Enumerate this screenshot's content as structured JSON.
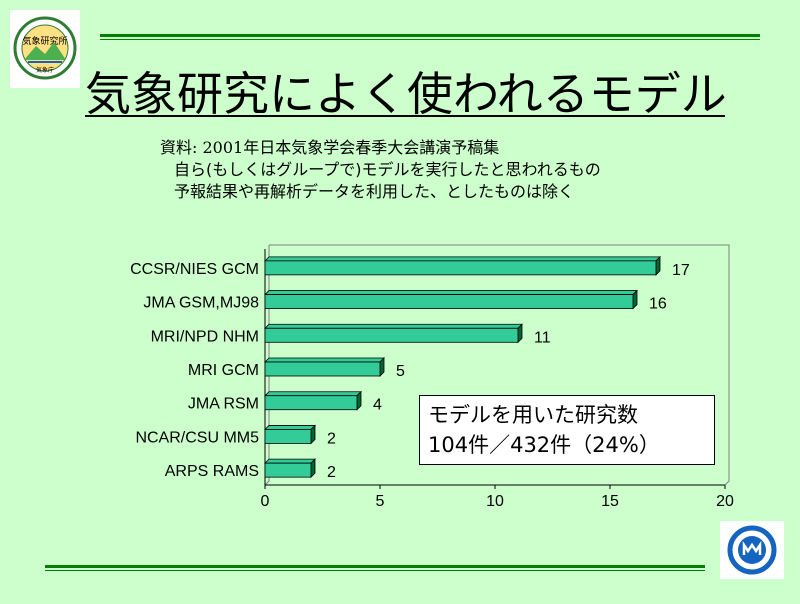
{
  "logo_top": {
    "icon": "meteorological-research-institute-logo",
    "text": "気象研究所",
    "subtext": "気象庁"
  },
  "title": "気象研究によく使われるモデル",
  "source": {
    "line1": "資料: 2001年日本気象学会春季大会講演予稿集",
    "line2": "自ら(もしくはグループで)モデルを実行したと思われるもの",
    "line3": "予報結果や再解析データを利用した、としたものは除く"
  },
  "callout": {
    "line1": "モデルを用いた研究数",
    "line2": "104件／432件（24%）"
  },
  "logo_bottom": {
    "icon": "japan-meteorological-agency-logo"
  },
  "colors": {
    "background": "#ccffcc",
    "bar": "#33cc99",
    "bar_side": "#006633",
    "accent_line": "#008000"
  },
  "chart_data": {
    "type": "bar",
    "orientation": "horizontal",
    "categories": [
      "CCSR/NIES GCM",
      "JMA GSM,MJ98",
      "MRI/NPD NHM",
      "MRI GCM",
      "JMA RSM",
      "NCAR/CSU MM5",
      "ARPS RAMS"
    ],
    "values": [
      17,
      16,
      11,
      5,
      4,
      2,
      2
    ],
    "xlim": [
      0,
      20
    ],
    "xticks": [
      "0",
      "5",
      "10",
      "15",
      "20"
    ],
    "title": "",
    "xlabel": "",
    "ylabel": "",
    "grid": false
  }
}
